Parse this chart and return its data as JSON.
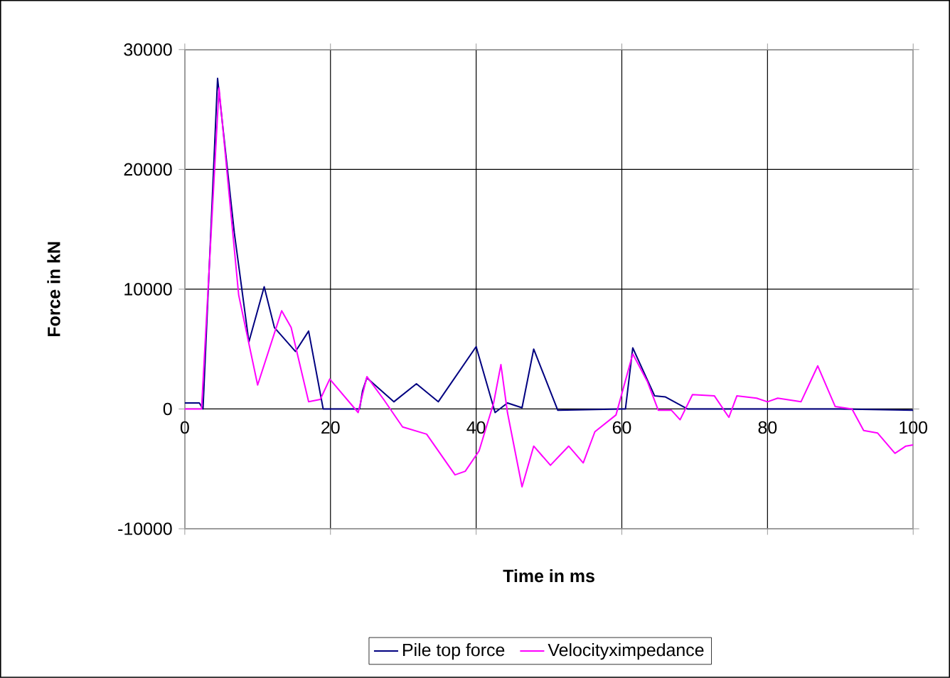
{
  "chart_data": {
    "type": "line",
    "xlabel": "Time in ms",
    "ylabel": "Force in kN",
    "xlim": [
      0,
      100
    ],
    "xticks": [
      0,
      20,
      40,
      60,
      80,
      100
    ],
    "ylim": [
      -10000,
      30000
    ],
    "yticks": [
      -10000,
      0,
      10000,
      20000,
      30000
    ],
    "grid": true,
    "legend": "bottom",
    "line_style": "solid",
    "series": [
      {
        "name": "Pile top force",
        "color": "#000080",
        "x": [
          0,
          2,
          2.5,
          4.5,
          6.8,
          8.8,
          10.9,
          12.3,
          15.2,
          17,
          19,
          24,
          24.4,
          25,
          28.7,
          31.8,
          34.8,
          40,
          42.6,
          44.3,
          46.3,
          47.9,
          51.2,
          60,
          60.5,
          61.5,
          64.5,
          66,
          69,
          80,
          90,
          100
        ],
        "values": [
          500,
          500,
          0,
          27600,
          14700,
          5600,
          10200,
          6800,
          4800,
          6500,
          0,
          0,
          1500,
          2600,
          600,
          2100,
          600,
          5200,
          -300,
          500,
          100,
          5000,
          -100,
          0,
          0,
          5100,
          1100,
          1000,
          0,
          0,
          0,
          -100
        ]
      },
      {
        "name": "Velocityximpedance",
        "color": "#ff00ff",
        "x": [
          0,
          2.3,
          4.7,
          7.4,
          10,
          13.3,
          14.6,
          17,
          18.6,
          19.9,
          23.8,
          25,
          27.3,
          29.9,
          33.2,
          37.1,
          38.5,
          40.4,
          42.4,
          43.4,
          44.3,
          46.3,
          47.9,
          50.2,
          52.7,
          54.7,
          56.3,
          59.2,
          61.5,
          63.5,
          65,
          66.8,
          68,
          69.7,
          72.7,
          74.7,
          75.8,
          78.5,
          80,
          81.4,
          84.6,
          86.9,
          89.3,
          91.6,
          93.2,
          95.1,
          97.5,
          99,
          100
        ],
        "values": [
          0,
          0,
          26800,
          9500,
          2000,
          8200,
          6800,
          600,
          800,
          2500,
          -300,
          2700,
          800,
          -1500,
          -2100,
          -5500,
          -5200,
          -3500,
          500,
          3700,
          -300,
          -6500,
          -3100,
          -4700,
          -3100,
          -4500,
          -1900,
          -500,
          4600,
          2300,
          -100,
          -100,
          -900,
          1200,
          1100,
          -700,
          1100,
          900,
          600,
          900,
          600,
          3600,
          200,
          0,
          -1800,
          -2000,
          -3700,
          -3100,
          -3000
        ]
      }
    ]
  }
}
